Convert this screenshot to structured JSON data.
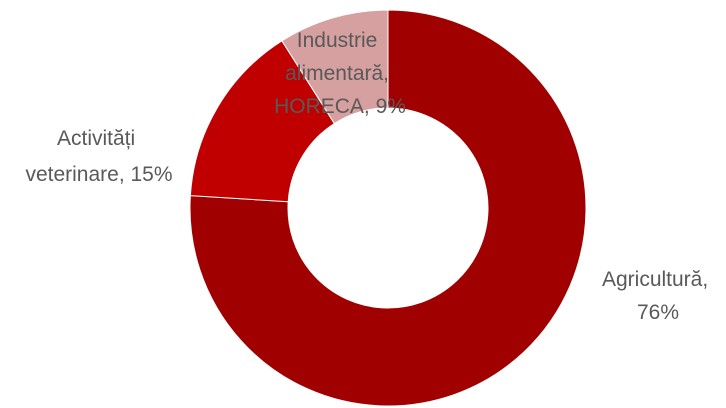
{
  "chart_data": {
    "type": "pie",
    "variant": "donut",
    "title": "",
    "slices": [
      {
        "category": "Agricultură",
        "value": 76,
        "label_lines": [
          "Agricultură,",
          "76%"
        ],
        "color": "#A00000"
      },
      {
        "category": "Activități veterinare",
        "value": 15,
        "label_lines": [
          "Activități",
          "veterinare, 15%"
        ],
        "color": "#C00000"
      },
      {
        "category": "Industrie alimentară, HORECA",
        "value": 9,
        "label_lines": [
          "Industrie",
          "alimentară,",
          "HORECA, 9%"
        ],
        "color": "#D6A0A0"
      }
    ],
    "legend": "none"
  }
}
